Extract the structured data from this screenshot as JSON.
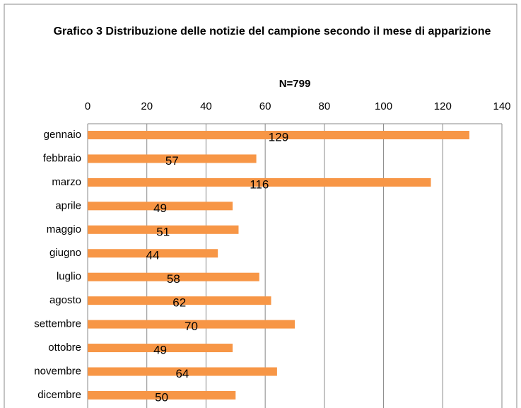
{
  "chart_data": {
    "type": "bar",
    "orientation": "horizontal",
    "title": "Grafico 3 Distribuzione delle notizie del campione secondo il mese di apparizione",
    "subtitle": "N=799",
    "categories": [
      "gennaio",
      "febbraio",
      "marzo",
      "aprile",
      "maggio",
      "giugno",
      "luglio",
      "agosto",
      "settembre",
      "ottobre",
      "novembre",
      "dicembre"
    ],
    "values": [
      129,
      57,
      116,
      49,
      51,
      44,
      58,
      62,
      70,
      49,
      64,
      50
    ],
    "color": "#f79646",
    "xlim": [
      0,
      140
    ],
    "xticks": [
      0,
      20,
      40,
      60,
      80,
      100,
      120,
      140
    ],
    "grid": true
  }
}
